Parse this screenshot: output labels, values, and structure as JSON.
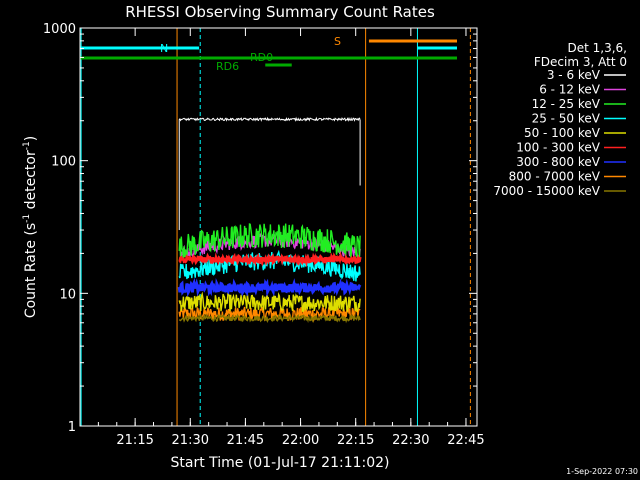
{
  "chart_data": {
    "type": "line",
    "title": "RHESSI Observing Summary Count Rates",
    "xlabel": "Start Time (01-Jul-17 21:11:02)",
    "ylabel_main": "Count Rate (s",
    "ylabel_exp1": "-1",
    "ylabel_mid": " detector",
    "ylabel_exp2": "-1",
    "ylabel_close": ")",
    "yscale": "log",
    "ylim": [
      1,
      1000
    ],
    "xlim_minutes": [
      21.0,
      22.8
    ],
    "x_ticks": [
      {
        "value": 21.25,
        "label": "21:15"
      },
      {
        "value": 21.5,
        "label": "21:30"
      },
      {
        "value": 21.75,
        "label": "21:45"
      },
      {
        "value": 22.0,
        "label": "22:00"
      },
      {
        "value": 22.25,
        "label": "22:15"
      },
      {
        "value": 22.5,
        "label": "22:30"
      },
      {
        "value": 22.75,
        "label": "22:45"
      }
    ],
    "y_ticks": [
      {
        "value": 1,
        "label": "1"
      },
      {
        "value": 10,
        "label": "10"
      },
      {
        "value": 100,
        "label": "100"
      },
      {
        "value": 1000,
        "label": "1000"
      }
    ],
    "legend_header": [
      "Det 1,3,6,",
      "FDecim 3, Att 0"
    ],
    "series": [
      {
        "name": "3 - 6 keV",
        "color": "#ffffff",
        "level": 205,
        "noise": 0.02
      },
      {
        "name": "6 - 12 keV",
        "color": "#dd44dd",
        "level": 20,
        "noise": 0.12
      },
      {
        "name": "12 - 25 keV",
        "color": "#22ee22",
        "level": 22,
        "noise": 0.22
      },
      {
        "name": "25 - 50 keV",
        "color": "#00ffff",
        "level": 14,
        "noise": 0.16
      },
      {
        "name": "50 - 100 keV",
        "color": "#dddd00",
        "level": 8.5,
        "noise": 0.15
      },
      {
        "name": "100 - 300 keV",
        "color": "#ff2020",
        "level": 18,
        "noise": 0.05
      },
      {
        "name": "300 - 800 keV",
        "color": "#2030ff",
        "level": 11,
        "noise": 0.08
      },
      {
        "name": "800 - 7000 keV",
        "color": "#ff8800",
        "level": 7,
        "noise": 0.12
      },
      {
        "name": "7000 - 15000 keV",
        "color": "#887700",
        "level": 6.5,
        "noise": 0.05
      }
    ],
    "data_span": [
      21.45,
      22.27
    ],
    "annotations": {
      "n_label": "N",
      "s_label": "S",
      "rd0_label": "RD0",
      "rd6_label": "RD6",
      "timestamp": "1-Sep-2022 07:30"
    }
  }
}
